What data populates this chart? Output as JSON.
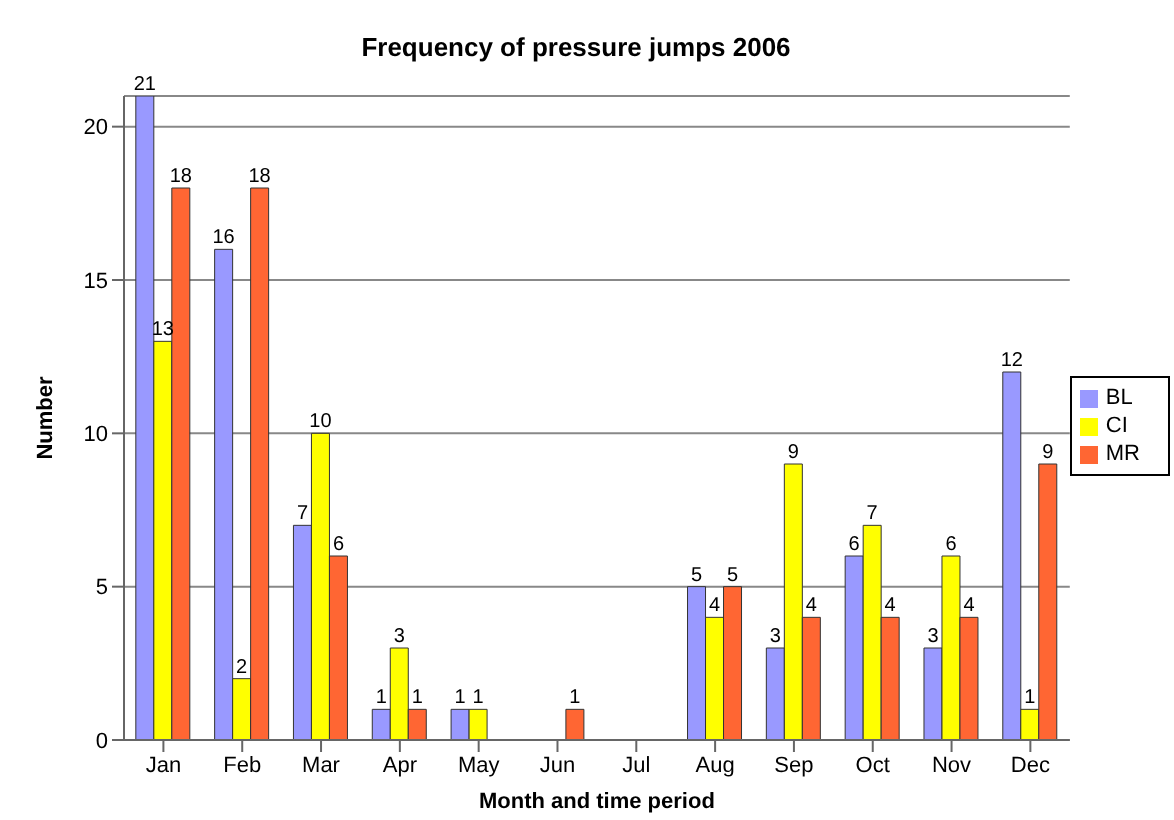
{
  "chart_data": {
    "type": "bar",
    "title": "Frequency of pressure jumps 2006",
    "xlabel": "Month and time period",
    "ylabel": "Number",
    "categories": [
      "Jan",
      "Feb",
      "Mar",
      "Apr",
      "May",
      "Jun",
      "Jul",
      "Aug",
      "Sep",
      "Oct",
      "Nov",
      "Dec"
    ],
    "series": [
      {
        "name": "BL",
        "color": "#9999ff",
        "values": [
          21,
          16,
          7,
          1,
          1,
          0,
          0,
          5,
          3,
          6,
          3,
          12
        ],
        "value_labels": [
          "21",
          "16",
          "7",
          "1",
          "1",
          null,
          null,
          "5",
          "3",
          "6",
          "3",
          "12"
        ]
      },
      {
        "name": "CI",
        "color": "#ffff00",
        "values": [
          13,
          2,
          10,
          3,
          1,
          0,
          0,
          4,
          9,
          7,
          6,
          1
        ],
        "value_labels": [
          "13",
          "2",
          "10",
          "3",
          "1",
          null,
          null,
          "4",
          "9",
          "7",
          "6",
          "1"
        ]
      },
      {
        "name": "MR",
        "color": "#ff6633",
        "values": [
          18,
          18,
          6,
          1,
          0,
          1,
          0,
          5,
          4,
          4,
          4,
          9
        ],
        "value_labels": [
          "18",
          "18",
          "6",
          "1",
          null,
          "1",
          null,
          "5",
          "4",
          "4",
          "4",
          "9"
        ]
      }
    ],
    "ylim": [
      0,
      21
    ],
    "yticks": [
      0,
      5,
      10,
      15,
      20
    ],
    "grid": "y",
    "legend": "right"
  }
}
